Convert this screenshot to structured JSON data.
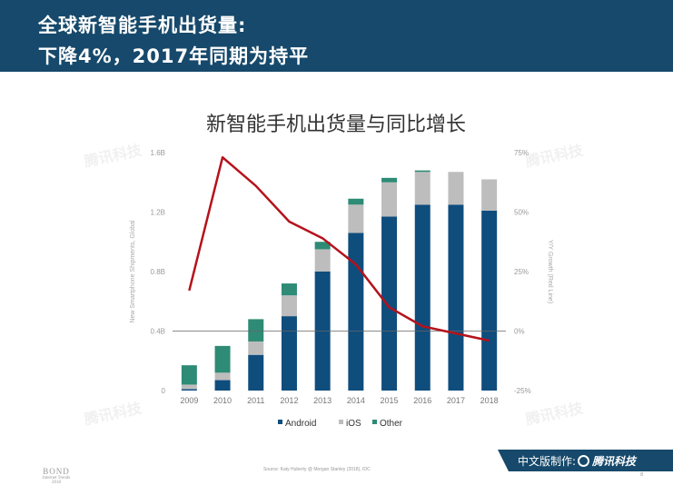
{
  "header": {
    "title_line1": "全球新智能手机出货量:",
    "title_line2": "下降4%，2017年同期为持平"
  },
  "watermark": "腾讯科技",
  "footer": {
    "logo_line1": "BOND",
    "logo_line2": "Internet Trends",
    "logo_line3": "2018",
    "source": "Source: Katy Huberty @ Morgan Stanley (2018), IDC",
    "page_number": "8",
    "badge_text": "中文版制作:",
    "badge_brand": "腾讯科技"
  },
  "colors": {
    "android": "#0f4d7d",
    "ios": "#bdbdbd",
    "other": "#2e8b75",
    "growth_line": "#b5121b",
    "header_bg": "#16496b"
  },
  "chart_data": {
    "type": "bar",
    "title": "新智能手机出货量与同比增长",
    "ylabel": "New Smartphone Shipments, Global",
    "y2label": "Y/Y Growth (Red Line)",
    "categories": [
      "2009",
      "2010",
      "2011",
      "2012",
      "2013",
      "2014",
      "2015",
      "2016",
      "2017",
      "2018"
    ],
    "ylim": [
      0,
      1.6
    ],
    "y_ticks": [
      "0",
      "0.4B",
      "0.8B",
      "1.2B",
      "1.6B"
    ],
    "y_tick_values": [
      0,
      0.4,
      0.8,
      1.2,
      1.6
    ],
    "y2lim": [
      -25,
      75
    ],
    "y2_ticks": [
      "-25%",
      "0%",
      "25%",
      "50%",
      "75%"
    ],
    "y2_tick_values": [
      -25,
      0,
      25,
      50,
      75
    ],
    "stacked": true,
    "series": [
      {
        "name": "Android",
        "color": "#0f4d7d",
        "values": [
          0.01,
          0.07,
          0.24,
          0.5,
          0.8,
          1.06,
          1.17,
          1.25,
          1.25,
          1.21
        ]
      },
      {
        "name": "iOS",
        "color": "#bdbdbd",
        "values": [
          0.03,
          0.05,
          0.09,
          0.14,
          0.15,
          0.19,
          0.23,
          0.22,
          0.22,
          0.21
        ]
      },
      {
        "name": "Other",
        "color": "#2e8b75",
        "values": [
          0.13,
          0.18,
          0.15,
          0.08,
          0.05,
          0.04,
          0.03,
          0.01,
          0.0,
          0.0
        ]
      }
    ],
    "line": {
      "name": "Y/Y Growth",
      "color": "#b5121b",
      "values": [
        17,
        73,
        61,
        46,
        39,
        28,
        10,
        2,
        -1,
        -4
      ]
    },
    "legend": [
      "Android",
      "iOS",
      "Other"
    ],
    "legend_position": "bottom",
    "grid": false
  }
}
